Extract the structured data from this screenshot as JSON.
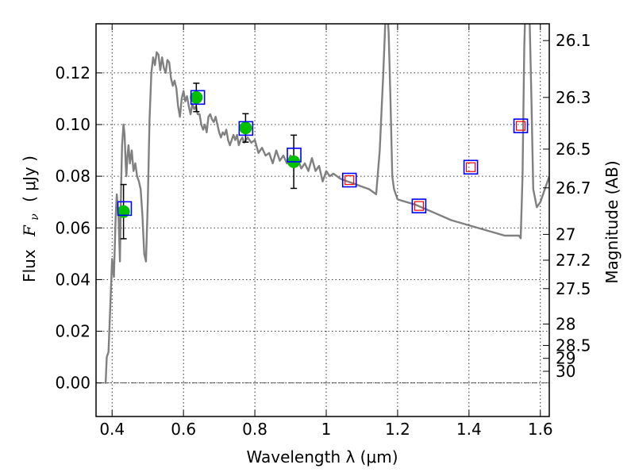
{
  "chart_data": {
    "type": "line",
    "xlabel": "Wavelength  λ (μm)",
    "ylabel_prefix": "Flux",
    "ylabel_symbol": "F",
    "ylabel_subscript": "ν",
    "ylabel_unit": "( μJy )",
    "y2label": "Magnitude (AB)",
    "xlim": [
      0.355,
      1.625
    ],
    "ylim": [
      -0.013,
      0.139
    ],
    "grid": true,
    "x_ticks": [
      0.4,
      0.6,
      0.8,
      1.0,
      1.2,
      1.4,
      1.6
    ],
    "x_tick_labels": [
      "0.4",
      "0.6",
      "0.8",
      "1",
      "1.2",
      "1.4",
      "1.6"
    ],
    "y_ticks": [
      0.0,
      0.02,
      0.04,
      0.06,
      0.08,
      0.1,
      0.12
    ],
    "y_tick_labels": [
      "0.00",
      "0.02",
      "0.04",
      "0.06",
      "0.08",
      "0.10",
      "0.12"
    ],
    "y2_ticks": [
      {
        "label": "26.1",
        "flux": 0.1325
      },
      {
        "label": "26.3",
        "flux": 0.1105
      },
      {
        "label": "26.5",
        "flux": 0.0905
      },
      {
        "label": "26.7",
        "flux": 0.0755
      },
      {
        "label": "27",
        "flux": 0.0575
      },
      {
        "label": "27.2",
        "flux": 0.0475
      },
      {
        "label": "27.5",
        "flux": 0.0365
      },
      {
        "label": "28",
        "flux": 0.0228
      },
      {
        "label": "28.5",
        "flux": 0.0145
      },
      {
        "label": "29",
        "flux": 0.0095
      },
      {
        "label": "30",
        "flux": 0.0045
      }
    ],
    "series": [
      {
        "style": "line",
        "color": "#808080",
        "x": [
          0.38,
          0.382,
          0.385,
          0.39,
          0.395,
          0.4,
          0.405,
          0.41,
          0.413,
          0.418,
          0.422,
          0.425,
          0.428,
          0.432,
          0.435,
          0.438,
          0.44,
          0.443,
          0.446,
          0.45,
          0.455,
          0.46,
          0.465,
          0.47,
          0.475,
          0.48,
          0.485,
          0.49,
          0.495,
          0.5,
          0.505,
          0.51,
          0.515,
          0.52,
          0.525,
          0.53,
          0.535,
          0.54,
          0.545,
          0.55,
          0.555,
          0.56,
          0.565,
          0.57,
          0.575,
          0.58,
          0.585,
          0.59,
          0.595,
          0.6,
          0.605,
          0.61,
          0.615,
          0.62,
          0.625,
          0.63,
          0.635,
          0.64,
          0.645,
          0.65,
          0.655,
          0.66,
          0.665,
          0.67,
          0.675,
          0.68,
          0.685,
          0.69,
          0.695,
          0.7,
          0.705,
          0.71,
          0.715,
          0.72,
          0.725,
          0.73,
          0.735,
          0.74,
          0.745,
          0.75,
          0.755,
          0.76,
          0.765,
          0.77,
          0.78,
          0.79,
          0.8,
          0.81,
          0.82,
          0.83,
          0.84,
          0.85,
          0.86,
          0.87,
          0.88,
          0.89,
          0.9,
          0.91,
          0.92,
          0.93,
          0.94,
          0.95,
          0.96,
          0.97,
          0.98,
          0.99,
          1.0,
          1.01,
          1.02,
          1.04,
          1.06,
          1.08,
          1.1,
          1.12,
          1.14,
          1.15,
          1.16,
          1.165,
          1.17,
          1.175,
          1.18,
          1.185,
          1.19,
          1.2,
          1.25,
          1.3,
          1.35,
          1.4,
          1.45,
          1.5,
          1.54,
          1.545,
          1.55,
          1.555,
          1.56,
          1.565,
          1.57,
          1.575,
          1.58,
          1.59,
          1.6,
          1.61,
          1.62,
          1.625
        ],
        "y": [
          0.0,
          0.0,
          0.01,
          0.012,
          0.03,
          0.048,
          0.041,
          0.064,
          0.073,
          0.065,
          0.047,
          0.075,
          0.092,
          0.1,
          0.096,
          0.085,
          0.08,
          0.088,
          0.092,
          0.085,
          0.09,
          0.082,
          0.085,
          0.08,
          0.078,
          0.075,
          0.065,
          0.05,
          0.047,
          0.07,
          0.102,
          0.12,
          0.126,
          0.123,
          0.128,
          0.127,
          0.121,
          0.126,
          0.122,
          0.12,
          0.125,
          0.124,
          0.118,
          0.115,
          0.117,
          0.114,
          0.107,
          0.103,
          0.11,
          0.113,
          0.109,
          0.111,
          0.107,
          0.104,
          0.108,
          0.106,
          0.107,
          0.104,
          0.104,
          0.1,
          0.098,
          0.1,
          0.097,
          0.103,
          0.104,
          0.102,
          0.101,
          0.103,
          0.1,
          0.097,
          0.095,
          0.097,
          0.096,
          0.098,
          0.094,
          0.092,
          0.094,
          0.096,
          0.094,
          0.096,
          0.092,
          0.094,
          0.095,
          0.093,
          0.095,
          0.093,
          0.094,
          0.089,
          0.091,
          0.088,
          0.089,
          0.085,
          0.09,
          0.086,
          0.088,
          0.085,
          0.088,
          0.086,
          0.087,
          0.083,
          0.085,
          0.082,
          0.087,
          0.082,
          0.084,
          0.078,
          0.082,
          0.08,
          0.081,
          0.079,
          0.078,
          0.077,
          0.076,
          0.075,
          0.073,
          0.09,
          0.12,
          0.138,
          0.148,
          0.135,
          0.11,
          0.08,
          0.075,
          0.071,
          0.069,
          0.066,
          0.063,
          0.061,
          0.059,
          0.057,
          0.057,
          0.056,
          0.08,
          0.13,
          0.155,
          0.16,
          0.14,
          0.11,
          0.075,
          0.068,
          0.07,
          0.074,
          0.078,
          0.08
        ]
      },
      {
        "style": "errorbar-points",
        "color": "#00c000",
        "x": [
          0.432,
          0.636,
          0.774,
          0.909
        ],
        "y": [
          0.0663,
          0.1105,
          0.0987,
          0.0856
        ],
        "yerr": [
          0.0105,
          0.0055,
          0.0055,
          0.0103
        ]
      },
      {
        "style": "open-squares",
        "color": "#0000ff",
        "x": [
          0.435,
          0.64,
          0.775,
          0.91,
          1.065,
          1.26,
          1.405,
          1.545
        ],
        "y": [
          0.0675,
          0.1105,
          0.0985,
          0.0882,
          0.0785,
          0.0685,
          0.0835,
          0.0995
        ]
      },
      {
        "style": "open-squares",
        "color": "#ff0000",
        "x": [
          1.065,
          1.26,
          1.405,
          1.545
        ],
        "y": [
          0.0785,
          0.0685,
          0.0835,
          0.0995
        ]
      }
    ]
  }
}
